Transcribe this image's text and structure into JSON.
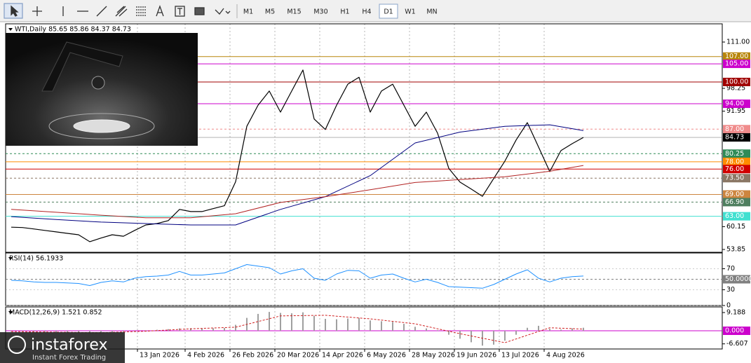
{
  "toolbar": {
    "timeframes": [
      "M1",
      "M5",
      "M15",
      "M30",
      "H1",
      "H4",
      "D1",
      "W1",
      "MN"
    ],
    "selected_index": 6
  },
  "logo": {
    "brand": "instaforex",
    "tagline": "Instant Forex Trading"
  },
  "chart_data": [
    {
      "type": "line",
      "title": "WTI,Daily  85.65 85.86 84.37 84.73",
      "x": [
        0,
        4,
        8,
        12,
        16,
        20,
        24,
        28,
        32,
        36,
        40,
        44,
        48,
        52,
        56,
        60,
        64,
        68,
        72,
        76,
        80,
        84,
        88,
        92,
        96,
        100,
        104,
        108,
        112,
        116,
        120,
        124,
        128,
        132,
        136,
        140,
        144,
        148,
        152,
        156,
        160,
        164,
        168,
        172,
        176,
        180,
        184,
        188,
        192,
        196,
        200,
        204
      ],
      "xlim": [
        -2,
        253.5
      ],
      "xticks": [
        {
          "value": 45,
          "label": "13 Jan 2026"
        },
        {
          "value": 62,
          "label": "4 Feb 2026"
        },
        {
          "value": 78,
          "label": "26 Feb 2026"
        },
        {
          "value": 94,
          "label": "20 Mar 2026"
        },
        {
          "value": 110,
          "label": "14 Apr 2026"
        },
        {
          "value": 126,
          "label": "6 May 2026"
        },
        {
          "value": 142,
          "label": "28 May 2026"
        },
        {
          "value": 158,
          "label": "19 Jun 2026"
        },
        {
          "value": 174,
          "label": "13 Jul 2026"
        },
        {
          "value": 190,
          "label": "4 Aug 2026"
        }
      ],
      "grid": true,
      "ylim": [
        53.08,
        116.02
      ],
      "yticks": [
        {
          "value": 111,
          "label": "111.00"
        },
        98.25,
        91.95,
        60.15,
        53.85
      ],
      "last_price": 84.73,
      "levels": [
        {
          "value": 107,
          "label": "107.00",
          "color": "#b8860b",
          "dashed": false
        },
        {
          "value": 105,
          "label": "105.00",
          "color": "#cc00cc",
          "dashed": false
        },
        {
          "value": 100,
          "label": "100.00",
          "color": "#a00000",
          "dashed": false
        },
        {
          "value": 94,
          "label": "94.00",
          "color": "#cc00cc",
          "dashed": false
        },
        {
          "value": 87,
          "label": "87.00",
          "color": "#f08c8c",
          "dashed": true
        },
        {
          "value": 80.25,
          "label": "80.25",
          "color": "#2e8b57",
          "dashed": true
        },
        {
          "value": 78,
          "label": "78.00",
          "color": "#ff8c00",
          "dashed": false
        },
        {
          "value": 76,
          "label": "76.00",
          "color": "#d00000",
          "dashed": false
        },
        {
          "value": 73.5,
          "label": "73.50",
          "color": "#8b7765",
          "dashed": true
        },
        {
          "value": 69,
          "label": "69.00",
          "color": "#cd853f",
          "dashed": false
        },
        {
          "value": 66.9,
          "label": "66.90",
          "color": "#4f7f5f",
          "dashed": true
        },
        {
          "value": 63,
          "label": "63.00",
          "color": "#40e0d0",
          "dashed": false
        }
      ],
      "series": [
        {
          "color": "#000000",
          "style": "solid",
          "values": [
            60.0,
            59.9,
            59.5,
            59.1,
            58.7,
            58.3,
            57.9,
            56.0,
            57.0,
            57.9,
            57.5,
            59.1,
            60.6,
            61.0,
            61.8,
            64.9,
            64.3,
            64.3,
            65.1,
            65.9,
            72.5,
            87.8,
            93.6,
            97.5,
            91.7,
            97.5,
            103.3,
            89.8,
            86.9,
            93.6,
            99.4,
            101.3,
            91.7,
            97.5,
            99.4,
            93.6,
            87.8,
            91.7,
            85.9,
            76.2,
            72.4,
            70.5,
            68.5,
            73.4,
            78.2,
            84.0,
            88.8,
            82.1,
            75.3,
            81.1,
            83.0,
            84.73
          ]
        },
        {
          "color": "#000080",
          "style": "solid",
          "x": [
            0,
            16,
            32,
            48,
            64,
            80,
            96,
            112,
            128,
            144,
            160,
            176,
            192,
            204
          ],
          "values": [
            62.9,
            62.1,
            61.4,
            61.0,
            60.6,
            60.6,
            64.9,
            68.4,
            74.2,
            83.2,
            86.2,
            87.8,
            88.2,
            86.6
          ]
        },
        {
          "color": "#b22222",
          "style": "solid",
          "x": [
            0,
            16,
            32,
            48,
            64,
            80,
            96,
            112,
            128,
            144,
            160,
            176,
            192,
            204
          ],
          "values": [
            64.9,
            64.1,
            63.3,
            62.6,
            62.6,
            63.7,
            66.8,
            68.4,
            70.3,
            72.3,
            73.1,
            73.9,
            75.4,
            77.0
          ]
        }
      ]
    },
    {
      "type": "line",
      "title": "RSI(14) 56.1933",
      "ylim": [
        0,
        100
      ],
      "yticks": [
        70,
        30,
        0
      ],
      "grid": true,
      "levels": [
        {
          "value": 50,
          "label": "50.0000",
          "color": "#808080",
          "dashed": true
        }
      ],
      "series": [
        {
          "color": "#1e90ff",
          "style": "solid",
          "values": [
            48,
            47,
            45,
            44,
            44,
            43,
            42,
            38,
            44,
            47,
            45,
            52,
            55,
            56,
            58,
            65,
            58,
            58,
            60,
            62,
            70,
            78,
            75,
            72,
            60,
            66,
            70,
            52,
            48,
            60,
            67,
            66,
            52,
            58,
            60,
            52,
            45,
            50,
            44,
            36,
            35,
            34,
            33,
            40,
            50,
            60,
            68,
            52,
            45,
            52,
            55,
            56.1933
          ]
        }
      ]
    },
    {
      "type": "line",
      "title": "MACD(12,26,9) 1.521 0.852",
      "ylim": [
        -9.19,
        12.01
      ],
      "yticks": [
        9.188,
        -6.607
      ],
      "grid": false,
      "levels": [
        {
          "value": 0,
          "label": "0.000",
          "color": "#cc00cc",
          "dashed": false
        }
      ],
      "series": [
        {
          "color": "#a0a0a0",
          "style": "bar",
          "values": [
            -0.5,
            -0.6,
            -0.7,
            -0.8,
            -0.8,
            -0.9,
            -1.0,
            -1.2,
            -0.9,
            -0.7,
            -0.6,
            -0.3,
            0.2,
            0.5,
            0.8,
            1.2,
            1.3,
            1.2,
            1.3,
            1.4,
            3.0,
            6.5,
            8.5,
            9.5,
            9.0,
            8.8,
            9.3,
            7.5,
            6.0,
            5.8,
            6.2,
            6.5,
            5.2,
            4.8,
            4.5,
            3.5,
            2.0,
            1.2,
            0.3,
            -2.0,
            -4.0,
            -5.8,
            -7.5,
            -7.0,
            -5.0,
            -2.0,
            1.5,
            2.5,
            1.0,
            0.6,
            1.2,
            1.521
          ]
        },
        {
          "color": "#d02020",
          "style": "dashed",
          "x": [
            0,
            16,
            32,
            48,
            64,
            80,
            96,
            112,
            128,
            144,
            160,
            176,
            192,
            204
          ],
          "values": [
            -0.4,
            -0.7,
            -1.0,
            -0.2,
            1.0,
            1.8,
            7.5,
            7.8,
            6.0,
            3.5,
            -1.5,
            -6.0,
            1.5,
            0.852
          ]
        }
      ]
    }
  ]
}
